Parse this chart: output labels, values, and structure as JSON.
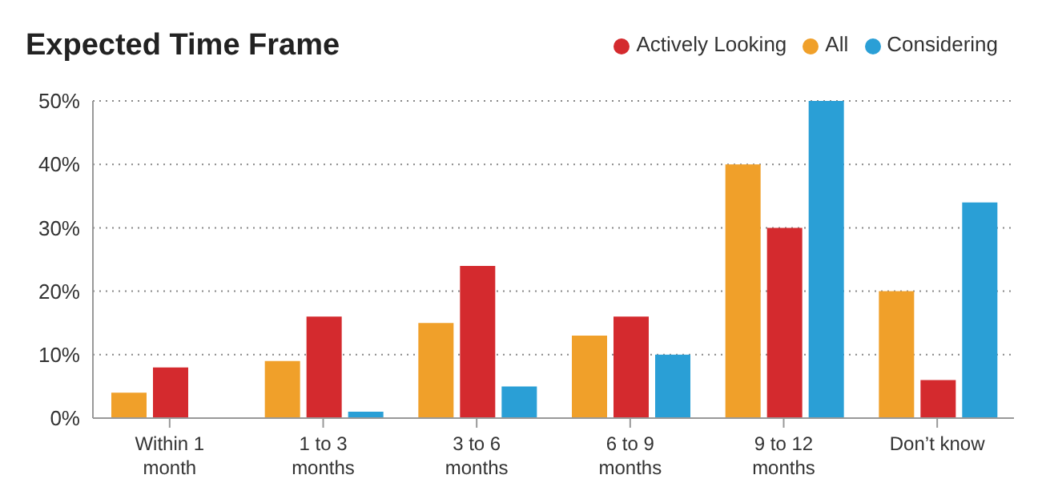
{
  "chart_data": {
    "type": "bar",
    "title": "Expected Time Frame",
    "categories": [
      "Within 1 month",
      "1 to 3 months",
      "3 to 6 months",
      "6 to 9 months",
      "9 to 12 months",
      "Don’t know"
    ],
    "series": [
      {
        "name": "All",
        "color": "#f0a02a",
        "values": [
          4,
          9,
          15,
          13,
          40,
          20
        ]
      },
      {
        "name": "Actively Looking",
        "color": "#d42a2e",
        "values": [
          8,
          16,
          24,
          16,
          30,
          6
        ]
      },
      {
        "name": "Considering",
        "color": "#2a9fd6",
        "values": [
          0,
          1,
          5,
          10,
          50,
          34
        ]
      }
    ],
    "ylim": [
      0,
      50
    ],
    "yticks": [
      {
        "value": 0,
        "label": "0%"
      },
      {
        "value": 10,
        "label": "10%"
      },
      {
        "value": 20,
        "label": "20%"
      },
      {
        "value": 30,
        "label": "30%"
      },
      {
        "value": 40,
        "label": "40%"
      },
      {
        "value": 50,
        "label": "50%"
      }
    ],
    "grid": "y",
    "legend": "top right"
  }
}
